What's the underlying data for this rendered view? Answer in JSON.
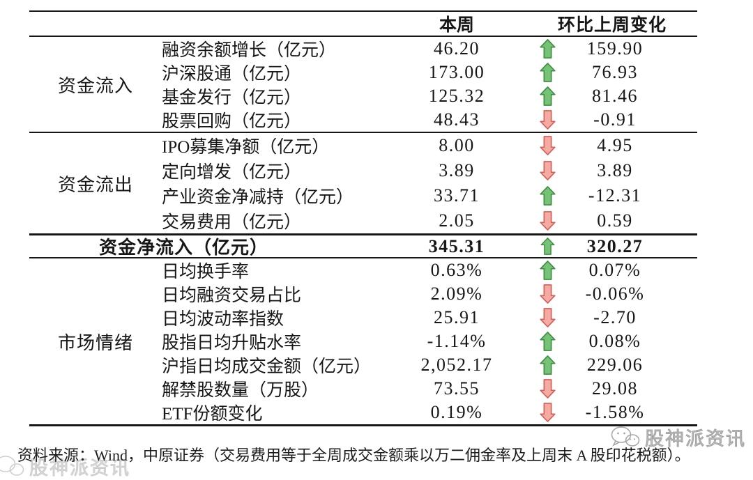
{
  "table": {
    "header": {
      "this_week": "本周",
      "wow_change": "环比上周变化"
    },
    "sections": [
      {
        "label": "资金流入",
        "rows": [
          {
            "label": "融资余额增长（亿元）",
            "this_week": "46.20",
            "direction": "up",
            "change": "159.90"
          },
          {
            "label": "沪深股通（亿元）",
            "this_week": "173.00",
            "direction": "up",
            "change": "76.93"
          },
          {
            "label": "基金发行（亿元）",
            "this_week": "125.32",
            "direction": "up",
            "change": "81.46"
          },
          {
            "label": "股票回购（亿元）",
            "this_week": "48.43",
            "direction": "down",
            "change": "-0.91"
          }
        ]
      },
      {
        "label": "资金流出",
        "rows": [
          {
            "label": "IPO募集净额（亿元）",
            "this_week": "8.00",
            "direction": "down",
            "change": "4.95"
          },
          {
            "label": "定向增发（亿元）",
            "this_week": "3.89",
            "direction": "down",
            "change": "3.89"
          },
          {
            "label": "产业资金净减持（亿元）",
            "this_week": "33.71",
            "direction": "up",
            "change": "-12.31"
          },
          {
            "label": "交易费用（亿元）",
            "this_week": "2.05",
            "direction": "down",
            "change": "0.59"
          }
        ]
      },
      {
        "label": "市场情绪",
        "rows": [
          {
            "label": "日均换手率",
            "this_week": "0.63%",
            "direction": "up",
            "change": "0.07%"
          },
          {
            "label": "日均融资交易占比",
            "this_week": "2.09%",
            "direction": "down",
            "change": "-0.06%"
          },
          {
            "label": "日均波动率指数",
            "this_week": "25.91",
            "direction": "down",
            "change": "-2.70"
          },
          {
            "label": "股指日均升贴水率",
            "this_week": "-1.14%",
            "direction": "up",
            "change": "0.08%"
          },
          {
            "label": "沪指日均成交金额（亿元）",
            "this_week": "2,052.17",
            "direction": "up",
            "change": "229.06"
          },
          {
            "label": "解禁股数量（万股）",
            "this_week": "73.55",
            "direction": "down",
            "change": "29.08"
          },
          {
            "label": "ETF份额变化",
            "this_week": "0.19%",
            "direction": "down",
            "change": "-1.58%"
          }
        ]
      }
    ],
    "summary": {
      "label": "资金净流入（亿元）",
      "this_week": "345.31",
      "direction": "up",
      "change": "320.27"
    }
  },
  "footer": {
    "source_note": "资料来源：Wind，中原证券（交易费用等于全周成交金额乘以万二佣金率及上周末 A 股印花税额）。"
  },
  "watermark": {
    "text": "股神派资讯"
  },
  "colors": {
    "up_fill": "#76c378",
    "up_stroke": "#3e8e41",
    "down_fill": "#f4aba4",
    "down_stroke": "#d55f56"
  }
}
